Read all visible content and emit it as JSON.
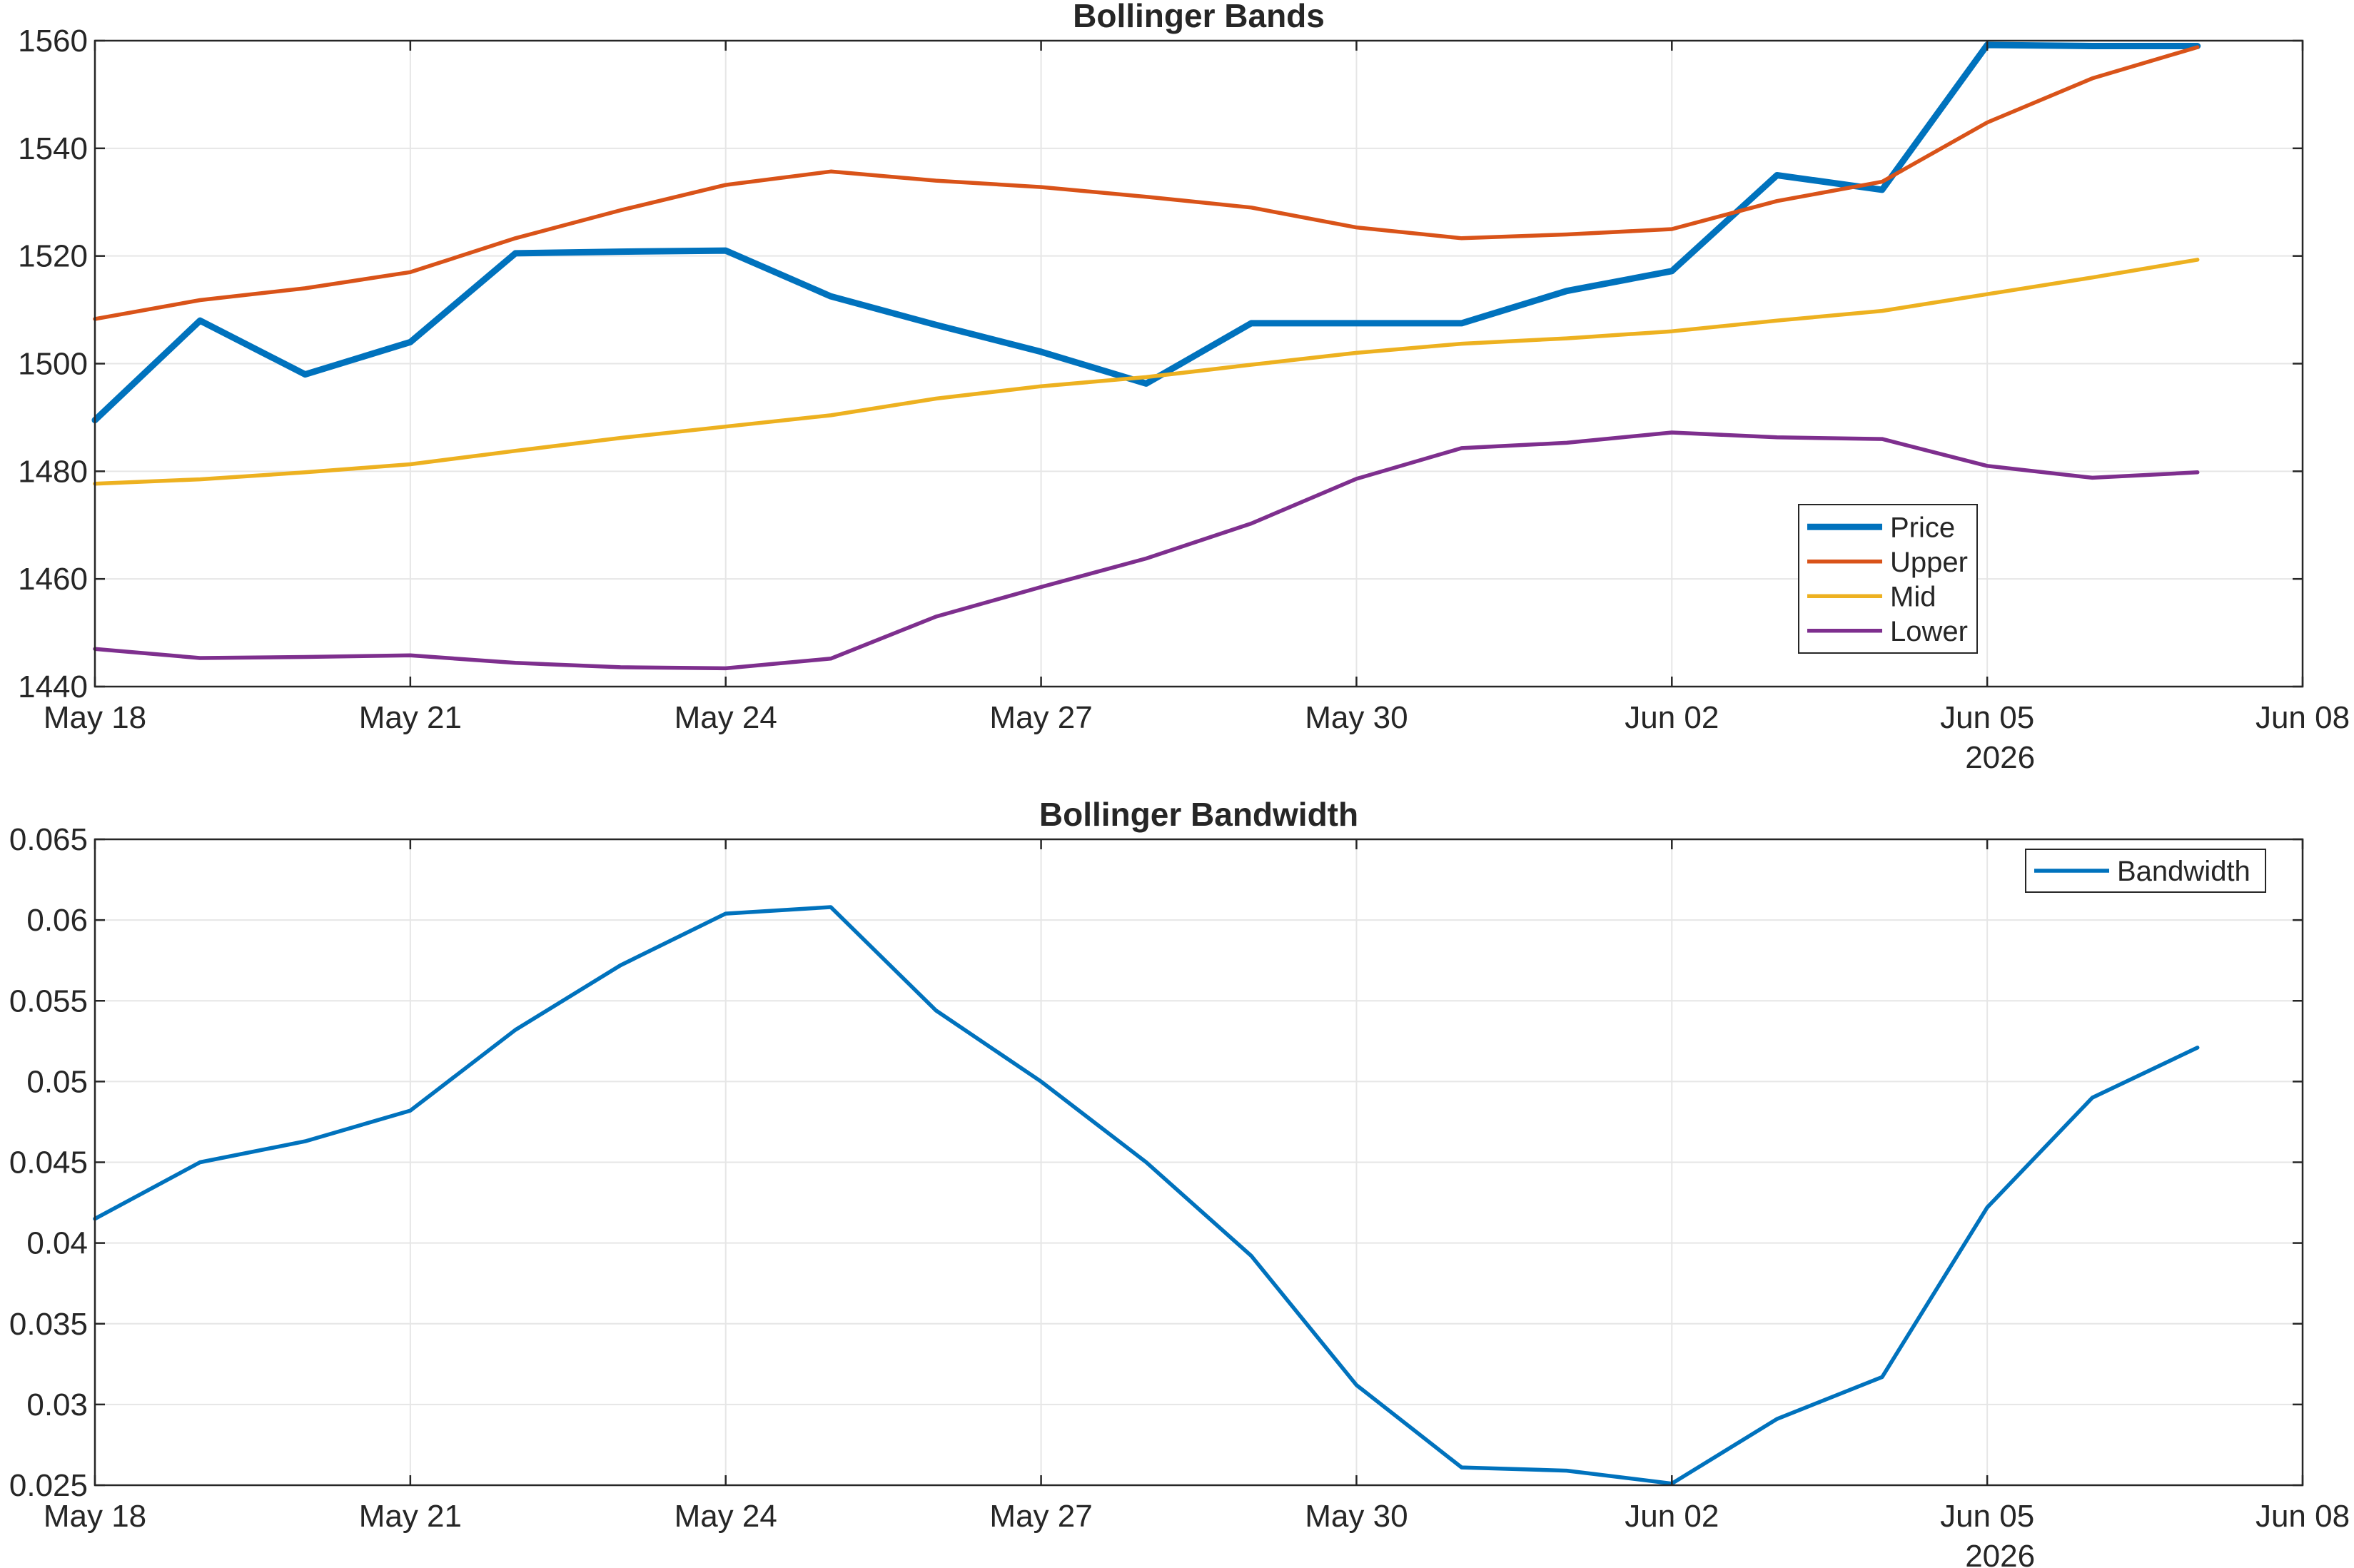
{
  "chart_data": [
    {
      "type": "line",
      "title": "Bollinger Bands",
      "xlabel": "",
      "ylabel": "",
      "x_ticks": [
        "May 18",
        "May 21",
        "May 24",
        "May 27",
        "May 30",
        "Jun 02",
        "Jun 05",
        "Jun 08"
      ],
      "x_year_label": "2026",
      "x_range": [
        "2026-05-18",
        "2026-06-08"
      ],
      "y_ticks": [
        "1440",
        "1460",
        "1480",
        "1500",
        "1520",
        "1540",
        "1560"
      ],
      "ylim": [
        1440,
        1560
      ],
      "grid": true,
      "legend_position": "lower-right",
      "x": [
        "2026-05-18",
        "2026-05-19",
        "2026-05-20",
        "2026-05-21",
        "2026-05-22",
        "2026-05-23",
        "2026-05-24",
        "2026-05-25",
        "2026-05-26",
        "2026-05-27",
        "2026-05-28",
        "2026-05-29",
        "2026-05-30",
        "2026-05-31",
        "2026-06-01",
        "2026-06-02",
        "2026-06-03",
        "2026-06-04",
        "2026-06-05",
        "2026-06-06",
        "2026-06-07"
      ],
      "series": [
        {
          "name": "Price",
          "color": "#0072BD",
          "values": [
            1489.5,
            1508.0,
            1498.0,
            1504.0,
            1520.5,
            1520.8,
            1521.0,
            1512.5,
            1507.2,
            1502.2,
            1496.3,
            1507.5,
            1507.5,
            1507.5,
            1513.5,
            1517.2,
            1535.0,
            1532.3,
            1559.2,
            1559.0,
            1559.0
          ]
        },
        {
          "name": "Upper",
          "color": "#D95319",
          "values": [
            1508.3,
            1511.8,
            1514.0,
            1517.0,
            1523.3,
            1528.5,
            1533.2,
            1535.7,
            1534.0,
            1532.8,
            1531.0,
            1529.0,
            1525.3,
            1523.3,
            1524.0,
            1525.0,
            1530.2,
            1533.8,
            1544.8,
            1553.0,
            1558.8
          ]
        },
        {
          "name": "Mid",
          "color": "#EDB120",
          "values": [
            1477.7,
            1478.5,
            1479.8,
            1481.3,
            1483.8,
            1486.2,
            1488.3,
            1490.4,
            1493.5,
            1495.8,
            1497.5,
            1499.8,
            1502.0,
            1503.7,
            1504.7,
            1506.0,
            1508.0,
            1509.8,
            1512.9,
            1516.0,
            1519.3
          ]
        },
        {
          "name": "Lower",
          "color": "#7E2F8E",
          "values": [
            1447.0,
            1445.3,
            1445.5,
            1445.8,
            1444.4,
            1443.6,
            1443.4,
            1445.2,
            1453.0,
            1458.5,
            1463.8,
            1470.3,
            1478.6,
            1484.3,
            1485.3,
            1487.2,
            1486.3,
            1486.0,
            1481.0,
            1478.8,
            1479.8
          ]
        }
      ]
    },
    {
      "type": "line",
      "title": "Bollinger Bandwidth",
      "xlabel": "",
      "ylabel": "",
      "x_ticks": [
        "May 18",
        "May 21",
        "May 24",
        "May 27",
        "May 30",
        "Jun 02",
        "Jun 05",
        "Jun 08"
      ],
      "x_year_label": "2026",
      "x_range": [
        "2026-05-18",
        "2026-06-08"
      ],
      "y_ticks": [
        "0.025",
        "0.03",
        "0.035",
        "0.04",
        "0.045",
        "0.05",
        "0.055",
        "0.06",
        "0.065"
      ],
      "ylim": [
        0.025,
        0.065
      ],
      "grid": true,
      "legend_position": "top-right",
      "x": [
        "2026-05-18",
        "2026-05-19",
        "2026-05-20",
        "2026-05-21",
        "2026-05-22",
        "2026-05-23",
        "2026-05-24",
        "2026-05-25",
        "2026-05-26",
        "2026-05-27",
        "2026-05-28",
        "2026-05-29",
        "2026-05-30",
        "2026-05-31",
        "2026-06-01",
        "2026-06-02",
        "2026-06-03",
        "2026-06-04",
        "2026-06-05",
        "2026-06-06",
        "2026-06-07"
      ],
      "series": [
        {
          "name": "Bandwidth",
          "color": "#0072BD",
          "values": [
            0.0415,
            0.045,
            0.0463,
            0.0482,
            0.0532,
            0.0572,
            0.0604,
            0.0608,
            0.0544,
            0.05,
            0.045,
            0.0392,
            0.0312,
            0.0261,
            0.0259,
            0.0251,
            0.0291,
            0.0317,
            0.0422,
            0.049,
            0.0521
          ]
        }
      ]
    }
  ]
}
